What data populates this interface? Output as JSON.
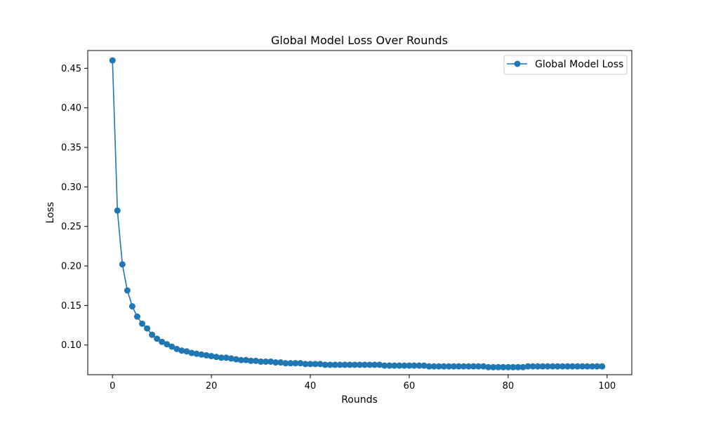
{
  "chart_data": {
    "type": "line",
    "title": "Global Model Loss Over Rounds",
    "xlabel": "Rounds",
    "ylabel": "Loss",
    "xlim": [
      -5,
      105
    ],
    "ylim": [
      0.0625,
      0.4725
    ],
    "xticks": [
      0,
      20,
      40,
      60,
      80,
      100
    ],
    "yticks": [
      0.1,
      0.15,
      0.2,
      0.25,
      0.3,
      0.35,
      0.4,
      0.45
    ],
    "xtick_labels": [
      "0",
      "20",
      "40",
      "60",
      "80",
      "100"
    ],
    "ytick_labels": [
      "0.10",
      "0.15",
      "0.20",
      "0.25",
      "0.30",
      "0.35",
      "0.40",
      "0.45"
    ],
    "grid": false,
    "legend": {
      "position": "top-right"
    },
    "series": [
      {
        "name": "Global Model Loss",
        "color": "#1f77b4",
        "marker": "circle",
        "x": [
          0,
          1,
          2,
          3,
          4,
          5,
          6,
          7,
          8,
          9,
          10,
          11,
          12,
          13,
          14,
          15,
          16,
          17,
          18,
          19,
          20,
          21,
          22,
          23,
          24,
          25,
          26,
          27,
          28,
          29,
          30,
          31,
          32,
          33,
          34,
          35,
          36,
          37,
          38,
          39,
          40,
          41,
          42,
          43,
          44,
          45,
          46,
          47,
          48,
          49,
          50,
          51,
          52,
          53,
          54,
          55,
          56,
          57,
          58,
          59,
          60,
          61,
          62,
          63,
          64,
          65,
          66,
          67,
          68,
          69,
          70,
          71,
          72,
          73,
          74,
          75,
          76,
          77,
          78,
          79,
          80,
          81,
          82,
          83,
          84,
          85,
          86,
          87,
          88,
          89,
          90,
          91,
          92,
          93,
          94,
          95,
          96,
          97,
          98,
          99
        ],
        "values": [
          0.46,
          0.27,
          0.202,
          0.169,
          0.149,
          0.136,
          0.127,
          0.121,
          0.113,
          0.108,
          0.104,
          0.101,
          0.098,
          0.095,
          0.093,
          0.092,
          0.09,
          0.089,
          0.088,
          0.087,
          0.086,
          0.085,
          0.084,
          0.084,
          0.083,
          0.082,
          0.081,
          0.081,
          0.08,
          0.08,
          0.079,
          0.079,
          0.079,
          0.078,
          0.078,
          0.077,
          0.077,
          0.077,
          0.077,
          0.076,
          0.076,
          0.076,
          0.076,
          0.075,
          0.075,
          0.075,
          0.075,
          0.075,
          0.075,
          0.075,
          0.075,
          0.075,
          0.075,
          0.075,
          0.075,
          0.074,
          0.074,
          0.074,
          0.074,
          0.074,
          0.074,
          0.074,
          0.074,
          0.074,
          0.073,
          0.073,
          0.073,
          0.073,
          0.073,
          0.073,
          0.073,
          0.073,
          0.073,
          0.073,
          0.073,
          0.073,
          0.072,
          0.072,
          0.072,
          0.072,
          0.072,
          0.072,
          0.072,
          0.072,
          0.073,
          0.073,
          0.073,
          0.073,
          0.073,
          0.073,
          0.073,
          0.073,
          0.073,
          0.073,
          0.073,
          0.073,
          0.073,
          0.073,
          0.073,
          0.073
        ]
      }
    ]
  }
}
